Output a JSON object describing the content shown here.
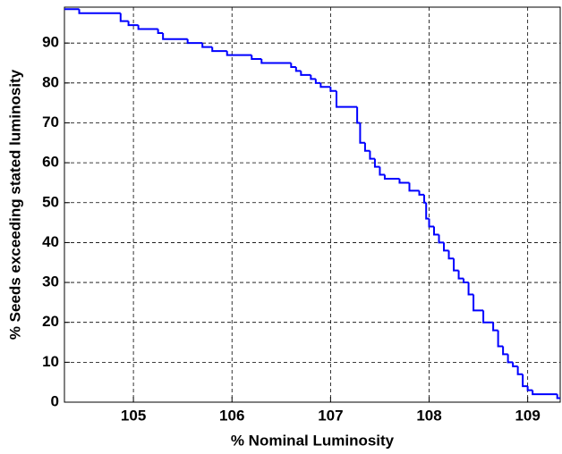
{
  "chart_data": {
    "type": "stairs",
    "xlabel": "% Nominal Luminosity",
    "ylabel": "% Seeds exceeding stated luminosity",
    "xlim": [
      104.3,
      109.33
    ],
    "ylim": [
      0,
      99
    ],
    "xticks": [
      105,
      106,
      107,
      108,
      109
    ],
    "yticks": [
      0,
      10,
      20,
      30,
      40,
      50,
      60,
      70,
      80,
      90
    ],
    "grid": true,
    "series": [
      {
        "color": "#0000ff",
        "x": [
          104.3,
          104.45,
          104.87,
          104.95,
          105.05,
          105.25,
          105.3,
          105.55,
          105.7,
          105.8,
          105.95,
          106.2,
          106.3,
          106.6,
          106.65,
          106.7,
          106.8,
          106.85,
          106.9,
          107.0,
          107.06,
          107.27,
          107.3,
          107.35,
          107.4,
          107.45,
          107.5,
          107.55,
          107.7,
          107.8,
          107.9,
          107.95,
          107.97,
          108.0,
          108.05,
          108.1,
          108.15,
          108.2,
          108.25,
          108.3,
          108.35,
          108.4,
          108.45,
          108.55,
          108.65,
          108.7,
          108.75,
          108.8,
          108.85,
          108.9,
          108.95,
          109.0,
          109.05,
          109.3
        ],
        "values": [
          98.5,
          97.5,
          95.5,
          94.5,
          93.5,
          92.5,
          91,
          90,
          89,
          88,
          87,
          86,
          85,
          84,
          83,
          82,
          81,
          80,
          79,
          78,
          74,
          70,
          65,
          63,
          61,
          59,
          57,
          56,
          55,
          53,
          52,
          50,
          46,
          44,
          42,
          40,
          38,
          36,
          33,
          31,
          30,
          27,
          23,
          20,
          18,
          14,
          12,
          10,
          9,
          7,
          4,
          3,
          2,
          1
        ]
      }
    ]
  }
}
